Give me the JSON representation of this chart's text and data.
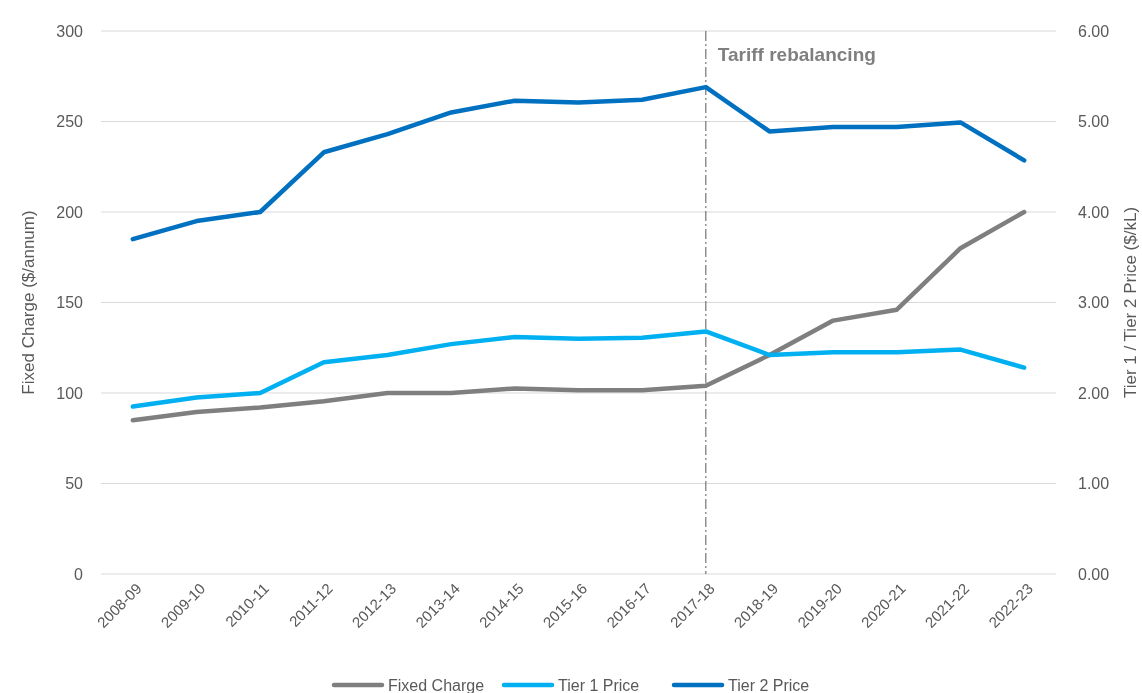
{
  "chart_data": {
    "type": "line",
    "categories": [
      "2008-09",
      "2009-10",
      "2010-11",
      "2011-12",
      "2012-13",
      "2013-14",
      "2014-15",
      "2015-16",
      "2016-17",
      "2017-18",
      "2018-19",
      "2019-20",
      "2020-21",
      "2021-22",
      "2022-23"
    ],
    "series": [
      {
        "name": "Fixed Charge",
        "color": "#7f7f7f",
        "values": [
          85,
          89.5,
          92,
          95.5,
          100,
          100,
          102.5,
          101.5,
          101.5,
          104,
          121,
          140,
          146,
          180,
          200
        ]
      },
      {
        "name": "Tier 1 Price",
        "color": "#00b0f0",
        "axis": "y2",
        "values": [
          1.85,
          1.95,
          2.0,
          2.34,
          2.42,
          2.54,
          2.62,
          2.6,
          2.61,
          2.68,
          2.42,
          2.45,
          2.45,
          2.48,
          2.28
        ]
      },
      {
        "name": "Tier 2 Price",
        "color": "#0070c0",
        "axis": "y2",
        "values": [
          3.7,
          3.9,
          4.0,
          4.66,
          4.86,
          5.1,
          5.23,
          5.21,
          5.24,
          5.38,
          4.89,
          4.94,
          4.94,
          4.99,
          4.57
        ]
      }
    ],
    "ylabel": "Fixed Charge ($/annum)",
    "y2label": "Tier 1 / Tier 2 Price ($/kL)",
    "ylim": [
      0,
      300
    ],
    "yticks": [
      0,
      50,
      100,
      150,
      200,
      250,
      300
    ],
    "y2lim": [
      0,
      6
    ],
    "y2ticks": [
      {
        "value": 0,
        "label": "0.00"
      },
      {
        "value": 1,
        "label": "1.00"
      },
      {
        "value": 2,
        "label": "2.00"
      },
      {
        "value": 3,
        "label": "3.00"
      },
      {
        "value": 4,
        "label": "4.00"
      },
      {
        "value": 5,
        "label": "5.00"
      },
      {
        "value": 6,
        "label": "6.00"
      }
    ],
    "ref_lines": [
      {
        "axis": "x",
        "value": "2017-18",
        "label": "Tariff rebalancing",
        "color": "#595959",
        "line_style": "dashdot"
      }
    ],
    "grid": "y",
    "legend": "bottom",
    "marker": "none",
    "line_style": "solid"
  }
}
